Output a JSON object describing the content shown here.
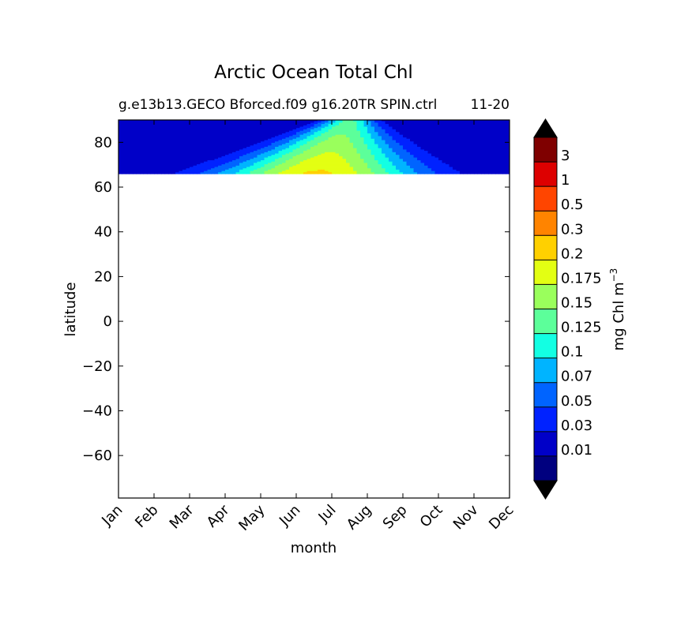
{
  "chart_data": {
    "type": "heatmap",
    "title": "Arctic Ocean Total Chl",
    "subtitle_left": "g.e13b13.GECO Bforced.f09 g16.20TR SPIN.ctrl",
    "subtitle_right": "11-20",
    "xlabel": "month",
    "ylabel": "latitude",
    "x_categories": [
      "Jan",
      "Feb",
      "Mar",
      "Apr",
      "May",
      "Jun",
      "Jul",
      "Aug",
      "Sep",
      "Oct",
      "Nov",
      "Dec"
    ],
    "xlim": [
      1,
      12
    ],
    "ylim": [
      -79,
      90
    ],
    "y_ticks": [
      "80",
      "60",
      "40",
      "20",
      "0",
      "−20",
      "−40",
      "−60"
    ],
    "y_tick_values": [
      80,
      60,
      40,
      20,
      0,
      -20,
      -40,
      -60
    ],
    "data_lat_range": [
      66,
      90
    ],
    "colorbar": {
      "label": "mg Chl m",
      "label_exponent": "−3",
      "tick_labels": [
        "0.01",
        "0.03",
        "0.05",
        "0.07",
        "0.1",
        "0.125",
        "0.15",
        "0.175",
        "0.2",
        "0.3",
        "0.5",
        "1",
        "3"
      ],
      "colors": [
        "#00007f",
        "#0000c8",
        "#0022ff",
        "#0064ff",
        "#00b4ff",
        "#13ffe3",
        "#5cff9a",
        "#9aff5c",
        "#e3ff13",
        "#ffd000",
        "#ff8400",
        "#ff4500",
        "#dd0000",
        "#7f0000"
      ],
      "extend": "both"
    },
    "grid": false
  }
}
